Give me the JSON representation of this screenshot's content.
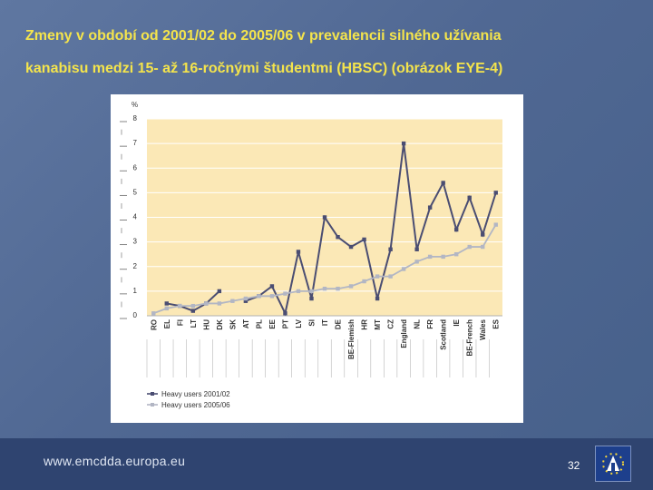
{
  "slide": {
    "title_line1": "Zmeny v období od 2001/02 do 2005/06 v prevalencii silného užívania",
    "title_line2": "kanabisu medzi 15- až 16-ročnými študentmi (HBSC) (obrázok EYE-4)"
  },
  "footer": {
    "url": "www.emcdda.europa.eu",
    "page_number": "32"
  },
  "colors": {
    "background": "#4f6691",
    "title": "#f4e44c",
    "plot_area": "#fbe8b6",
    "series_2001": "#4a4d72",
    "series_2005": "#b2b6c4"
  },
  "chart_data": {
    "type": "line",
    "title": "",
    "ylabel": "%",
    "xlabel": "",
    "ylim": [
      0,
      8
    ],
    "yticks": [
      0,
      1,
      2,
      3,
      4,
      5,
      6,
      7,
      8
    ],
    "grid": "horizontal",
    "legend_position": "bottom-left",
    "categories": [
      "RO",
      "EL",
      "FI",
      "LT",
      "HU",
      "DK",
      "SK",
      "AT",
      "PL",
      "EE",
      "PT",
      "LV",
      "SI",
      "IT",
      "DE",
      "BE-Flemish",
      "HR",
      "MT",
      "CZ",
      "England",
      "NL",
      "FR",
      "Scotland",
      "IE",
      "BE-French",
      "Wales",
      "ES"
    ],
    "series": [
      {
        "name": "Heavy users 2001/02",
        "values": [
          null,
          0.5,
          0.4,
          0.2,
          0.5,
          1.0,
          null,
          0.6,
          0.8,
          1.2,
          0.1,
          2.6,
          0.7,
          4.0,
          3.2,
          2.8,
          3.1,
          0.7,
          2.7,
          7.0,
          2.7,
          4.4,
          5.4,
          3.5,
          4.8,
          3.3,
          5.0
        ]
      },
      {
        "name": "Heavy users 2005/06",
        "values": [
          0.1,
          0.3,
          0.4,
          0.4,
          0.5,
          0.5,
          0.6,
          0.7,
          0.8,
          0.8,
          0.9,
          1.0,
          1.0,
          1.1,
          1.1,
          1.2,
          1.4,
          1.6,
          1.6,
          1.9,
          2.2,
          2.4,
          2.4,
          2.5,
          2.8,
          2.8,
          3.7
        ]
      }
    ]
  }
}
